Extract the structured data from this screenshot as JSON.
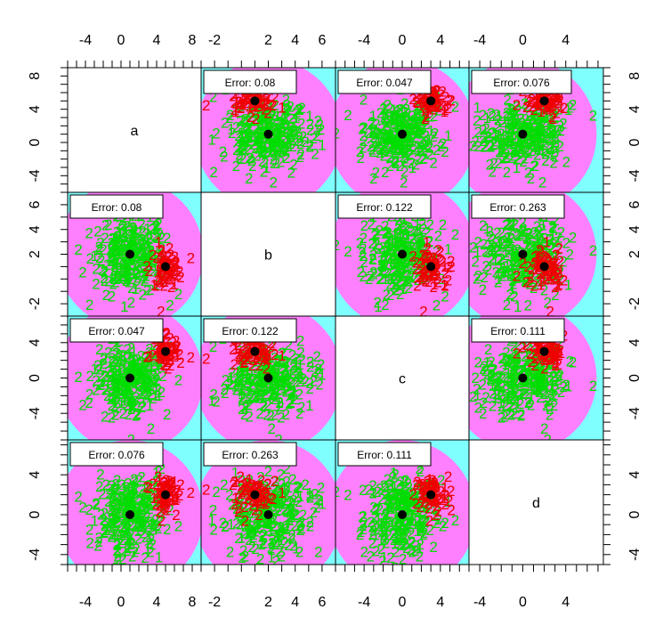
{
  "chart_data": {
    "type": "scatter",
    "variables": [
      "a",
      "b",
      "c",
      "d"
    ],
    "class_labels": [
      "1",
      "2"
    ],
    "colors": {
      "region_class1": "#80FFFF",
      "region_class2": "#FF80FF",
      "points_class1": "#00DD00",
      "points_class2": "#EE0000",
      "centroid": "#000000"
    },
    "ranges": {
      "a": [
        -6,
        9
      ],
      "b": [
        -3,
        7
      ],
      "c": [
        -7,
        7
      ],
      "d": [
        -5,
        7.5
      ]
    },
    "ticks": {
      "a": [
        -4,
        0,
        4,
        8
      ],
      "b": [
        -2,
        2,
        4,
        6
      ],
      "c": [
        -4,
        0,
        4
      ],
      "d": [
        -4,
        0,
        4
      ]
    },
    "tick_labels": {
      "a": [
        "-4",
        "0",
        "4",
        "8"
      ],
      "b": [
        "-2",
        "2",
        "4",
        "6"
      ],
      "c": [
        "-4",
        "0",
        "4"
      ],
      "d": [
        "-4",
        "0",
        "4"
      ]
    },
    "means": {
      "class1": {
        "a": 1,
        "b": 2,
        "c": 0,
        "d": 0
      },
      "class2": {
        "a": 5,
        "b": 1,
        "c": 3,
        "d": 2
      }
    },
    "errors": [
      {
        "row": "a",
        "col": "b",
        "label": "Error: 0.08"
      },
      {
        "row": "a",
        "col": "c",
        "label": "Error: 0.047"
      },
      {
        "row": "a",
        "col": "d",
        "label": "Error: 0.076"
      },
      {
        "row": "b",
        "col": "a",
        "label": "Error: 0.08"
      },
      {
        "row": "b",
        "col": "c",
        "label": "Error: 0.122"
      },
      {
        "row": "b",
        "col": "d",
        "label": "Error: 0.263"
      },
      {
        "row": "c",
        "col": "a",
        "label": "Error: 0.047"
      },
      {
        "row": "c",
        "col": "b",
        "label": "Error: 0.122"
      },
      {
        "row": "c",
        "col": "d",
        "label": "Error: 0.111"
      },
      {
        "row": "d",
        "col": "a",
        "label": "Error: 0.076"
      },
      {
        "row": "d",
        "col": "b",
        "label": "Error: 0.263"
      },
      {
        "row": "d",
        "col": "c",
        "label": "Error: 0.111"
      }
    ],
    "axis_tick_label_text": {
      "top_row_cols": [
        "-4",
        "0",
        "4",
        "8",
        "-2",
        "2",
        "4",
        "6",
        "-4",
        "0",
        "4",
        "-4",
        "0",
        "4"
      ],
      "bottom_row_cols": [
        "-4",
        "0",
        "4",
        "8",
        "-2",
        "2",
        "4",
        "6",
        "-4",
        "0",
        "4",
        "-4",
        "0",
        "4"
      ]
    }
  }
}
